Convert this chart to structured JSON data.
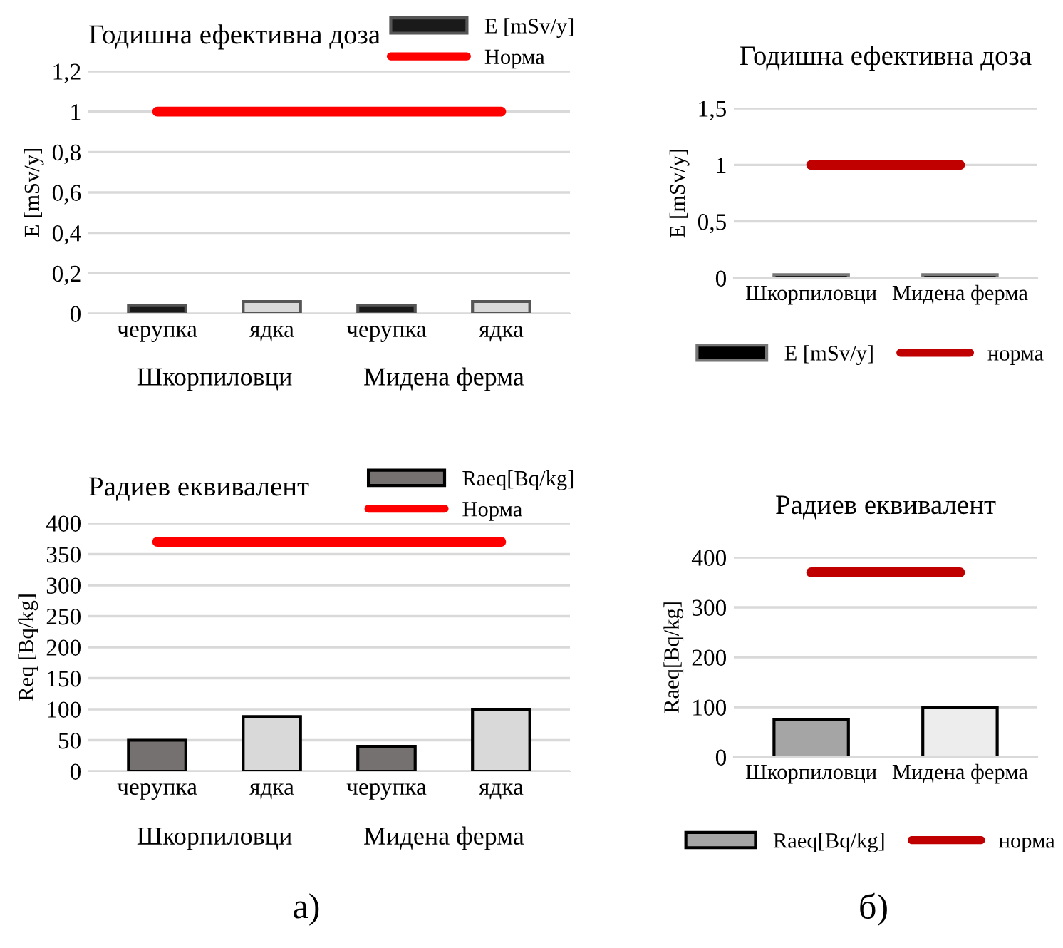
{
  "chart_data": [
    {
      "type": "bar",
      "title": "Годишна ефективна доза",
      "ylabel": "E [mSv/y]",
      "categories": [
        "черупка",
        "ядка",
        "черупка",
        "ядка"
      ],
      "series": [
        {
          "name": "E [mSv/y]",
          "color": "#1a1a1a",
          "colors": [
            "#1a1a1a",
            "#d9d9d9",
            "#1a1a1a",
            "#d9d9d9"
          ],
          "values": [
            0.04,
            0.06,
            0.04,
            0.06
          ]
        },
        {
          "name": "Норма",
          "type": "line",
          "color": "#ff0000",
          "values": [
            1,
            1,
            1,
            1
          ]
        }
      ],
      "ylim": [
        0,
        1.2
      ],
      "yticks": [
        0,
        {
          "value": 0.2,
          "label": "0,2"
        },
        {
          "value": 0.4,
          "label": "0,4"
        },
        {
          "value": 0.6,
          "label": "0,6"
        },
        {
          "value": 0.8,
          "label": "0,8"
        },
        1,
        {
          "value": 1.2,
          "label": "1,2"
        }
      ],
      "grid": "y",
      "legend": "top right",
      "annotations": [
        "Шкорпиловци",
        "Мидена ферма"
      ]
    },
    {
      "type": "bar",
      "title": "Годишна ефективна доза",
      "ylabel": "E [mSv/y]",
      "categories": [
        "Шкорпиловци",
        "Мидена ферма"
      ],
      "series": [
        {
          "name": "E [mSv/y]",
          "color": "#000000",
          "values": [
            0.03,
            0.03
          ]
        },
        {
          "name": "норма",
          "type": "line",
          "color": "#c00000",
          "values": [
            1,
            1
          ]
        }
      ],
      "ylim": [
        0,
        1.5
      ],
      "yticks": [
        0,
        {
          "value": 0.5,
          "label": "0,5"
        },
        1,
        {
          "value": 1.5,
          "label": "1,5"
        }
      ],
      "grid": "y",
      "legend": "bottom"
    },
    {
      "type": "bar",
      "title": "Радиев еквивалент",
      "ylabel": "Req [Bq/kg]",
      "categories": [
        "черупка",
        "ядка",
        "черупка",
        "ядка"
      ],
      "series": [
        {
          "name": "Raeq[Bq/kg]",
          "color": "#767171",
          "colors": [
            "#767171",
            "#d9d9d9",
            "#767171",
            "#d9d9d9"
          ],
          "values": [
            50,
            88,
            40,
            100
          ]
        },
        {
          "name": "Норма",
          "type": "line",
          "color": "#ff0000",
          "values": [
            370,
            370,
            370,
            370
          ]
        }
      ],
      "ylim": [
        0,
        400
      ],
      "yticks": [
        0,
        50,
        100,
        150,
        200,
        250,
        300,
        350,
        400
      ],
      "grid": "y",
      "legend": "top right",
      "annotations": [
        "Шкорпиловци",
        "Мидена ферма",
        "а)"
      ]
    },
    {
      "type": "bar",
      "title": "Радиев еквивалент",
      "ylabel": "Raeq[Bq/kg]",
      "categories": [
        "Шкорпиловци",
        "Мидена ферма"
      ],
      "series": [
        {
          "name": "Raeq[Bq/kg]",
          "color": "#a5a5a5",
          "colors": [
            "#a5a5a5",
            "#ededed"
          ],
          "values": [
            75,
            100
          ]
        },
        {
          "name": "норма",
          "type": "line",
          "color": "#c00000",
          "values": [
            370,
            370
          ]
        }
      ],
      "ylim": [
        0,
        400
      ],
      "yticks": [
        0,
        100,
        200,
        300,
        400
      ],
      "grid": "y",
      "legend": "bottom",
      "annotations": [
        "б)"
      ]
    }
  ]
}
